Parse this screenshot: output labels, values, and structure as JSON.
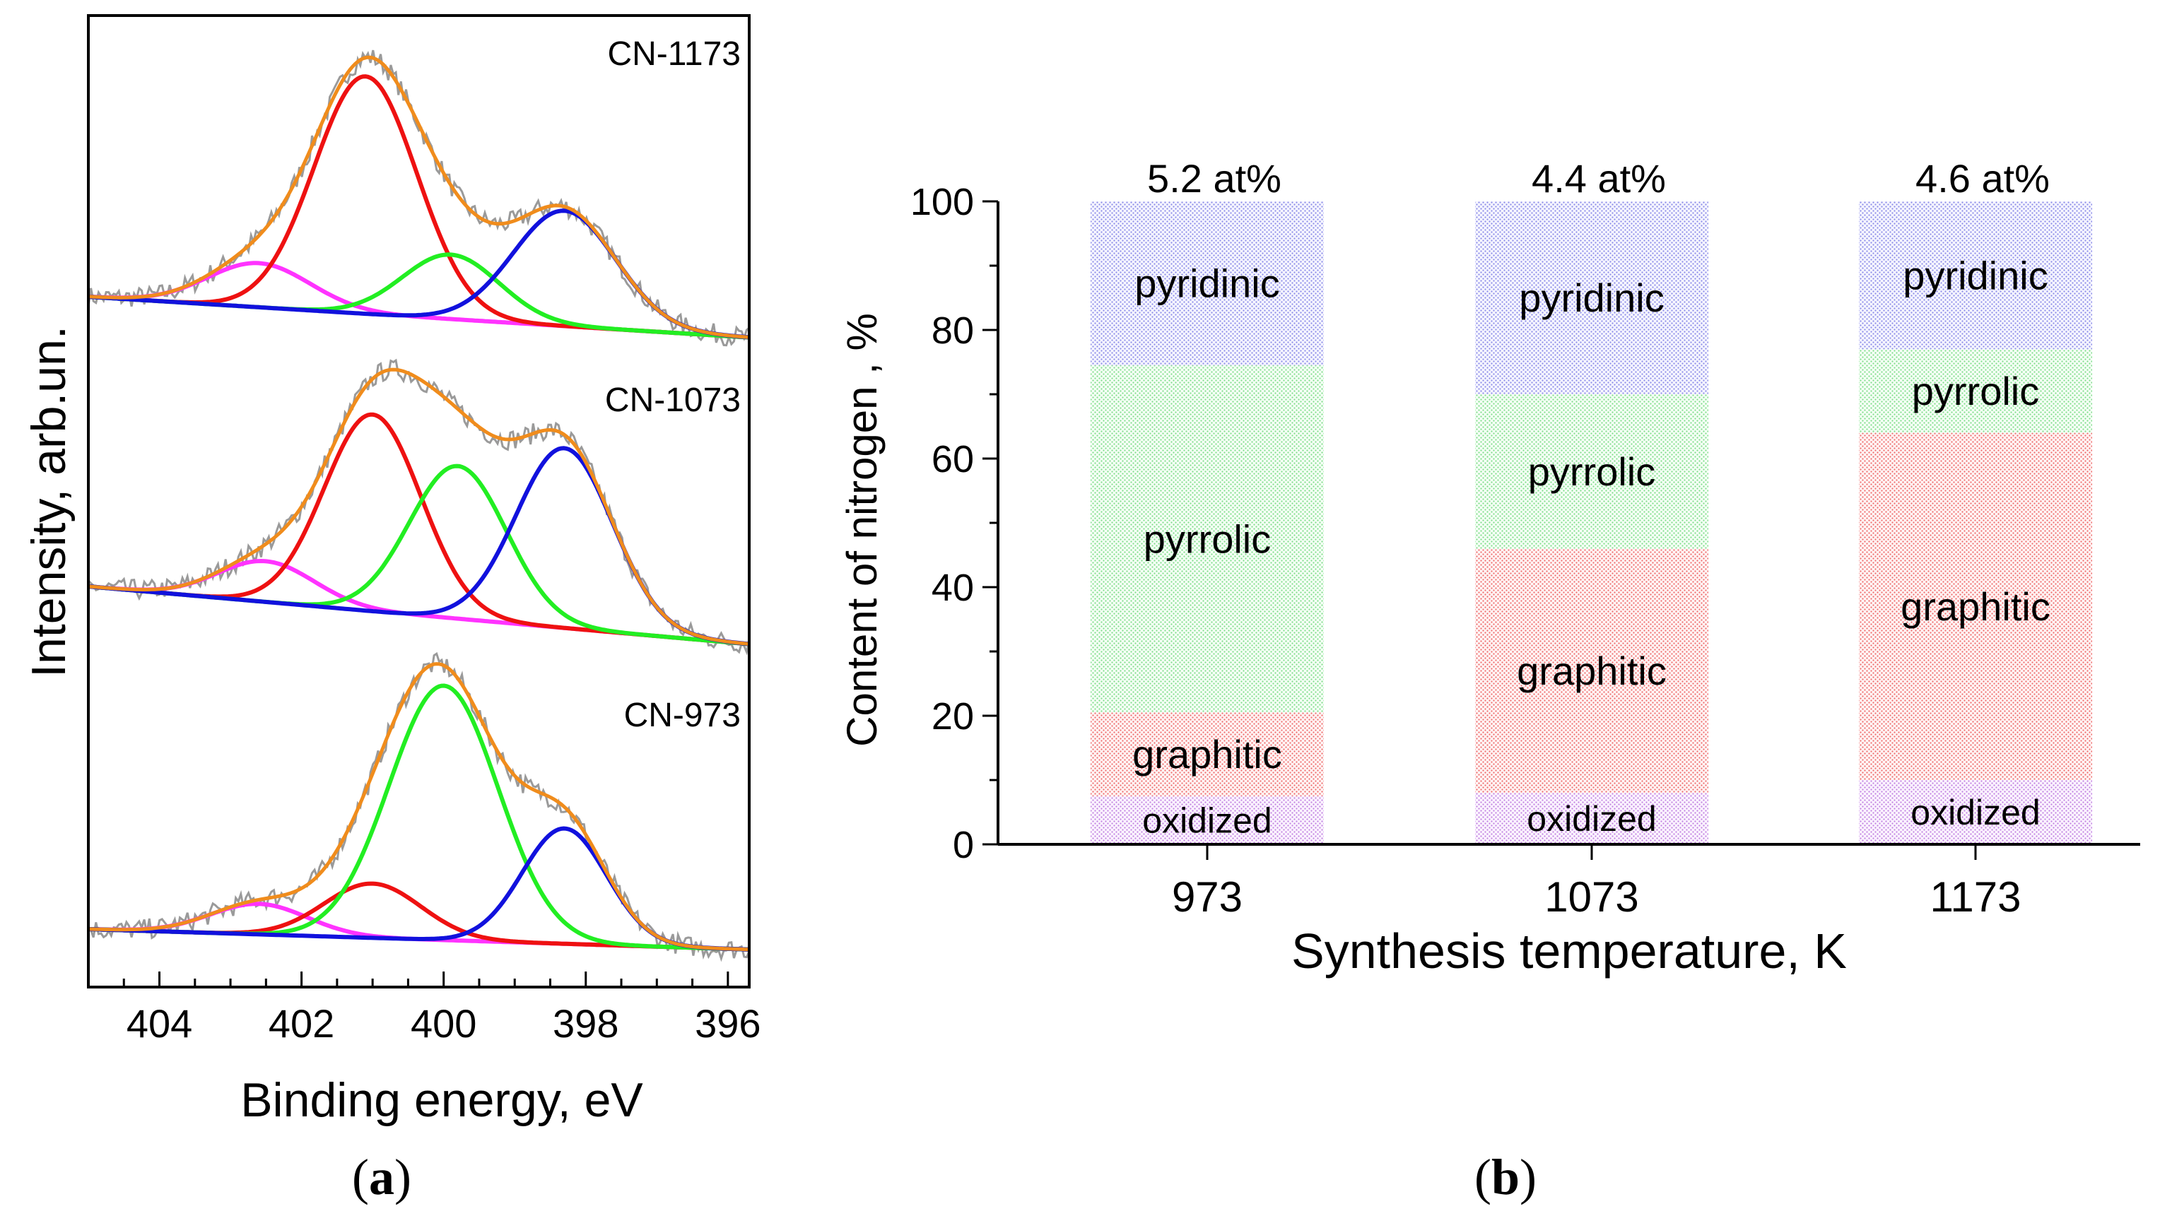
{
  "figure": {
    "panel_a_label_open": "(",
    "panel_a_label_letter": "a",
    "panel_a_label_close": ")",
    "panel_b_label_open": "(",
    "panel_b_label_letter": "b",
    "panel_b_label_close": ")"
  },
  "chart_data": [
    {
      "type": "line",
      "title": "",
      "xlabel": "Binding energy, eV",
      "ylabel": "Intensity, arb.un.",
      "xlim": [
        405,
        395.7
      ],
      "x_ticks": [
        404,
        402,
        400,
        398,
        396
      ],
      "colors": {
        "raw": "#9a9a9a",
        "envelope": "#f08c1c",
        "background": "#1a1aa0",
        "oxidized": "#ff33ff",
        "graphitic": "#ee1111",
        "pyrrolic": "#22ee22",
        "pyridinic": "#1111dd"
      },
      "components": [
        "oxidized",
        "graphitic",
        "pyrrolic",
        "pyridinic"
      ],
      "series": [
        {
          "name": "CN-1173",
          "background_start": 0.0,
          "background_end": -0.12,
          "peaks": [
            {
              "component": "oxidized",
              "center": 402.6,
              "height": 0.13,
              "fwhm": 1.7
            },
            {
              "component": "graphitic",
              "center": 401.1,
              "height": 0.7,
              "fwhm": 1.7
            },
            {
              "component": "pyrrolic",
              "center": 399.9,
              "height": 0.19,
              "fwhm": 1.6
            },
            {
              "component": "pyridinic",
              "center": 398.3,
              "height": 0.34,
              "fwhm": 1.7
            }
          ]
        },
        {
          "name": "CN-1073",
          "background_start": 0.0,
          "background_end": -0.17,
          "peaks": [
            {
              "component": "oxidized",
              "center": 402.5,
              "height": 0.12,
              "fwhm": 1.6
            },
            {
              "component": "graphitic",
              "center": 401.0,
              "height": 0.58,
              "fwhm": 1.6
            },
            {
              "component": "pyrrolic",
              "center": 399.8,
              "height": 0.45,
              "fwhm": 1.6
            },
            {
              "component": "pyridinic",
              "center": 398.3,
              "height": 0.53,
              "fwhm": 1.6
            }
          ]
        },
        {
          "name": "CN-973",
          "background_start": 0.0,
          "background_end": -0.06,
          "peaks": [
            {
              "component": "oxidized",
              "center": 402.6,
              "height": 0.09,
              "fwhm": 1.6
            },
            {
              "component": "graphitic",
              "center": 401.0,
              "height": 0.16,
              "fwhm": 1.6
            },
            {
              "component": "pyrrolic",
              "center": 400.0,
              "height": 0.75,
              "fwhm": 1.8
            },
            {
              "component": "pyridinic",
              "center": 398.3,
              "height": 0.34,
              "fwhm": 1.4
            }
          ]
        }
      ]
    },
    {
      "type": "bar",
      "stacked": true,
      "title": "",
      "xlabel": "Synthesis temperature, K",
      "ylabel": "Content of nitrogen , %",
      "ylim": [
        0,
        100
      ],
      "y_ticks": [
        0,
        20,
        40,
        60,
        80,
        100
      ],
      "categories": [
        "973",
        "1073",
        "1173"
      ],
      "totals": [
        "5.2 at%",
        "4.4 at%",
        "4.6 at%"
      ],
      "series": [
        {
          "name": "oxidized",
          "label": "oxidized",
          "color": "#c080e0",
          "values": [
            7.5,
            8.0,
            10.0
          ]
        },
        {
          "name": "graphitic",
          "label": "graphitic",
          "color": "#ee6a6a",
          "values": [
            13.0,
            38.0,
            54.0
          ]
        },
        {
          "name": "pyrrolic",
          "label": "pyrrolic",
          "color": "#7fdc8a",
          "values": [
            54.0,
            24.0,
            13.0
          ]
        },
        {
          "name": "pyridinic",
          "label": "pyridinic",
          "color": "#8a8ae8",
          "values": [
            25.5,
            30.0,
            23.0
          ]
        }
      ]
    }
  ]
}
